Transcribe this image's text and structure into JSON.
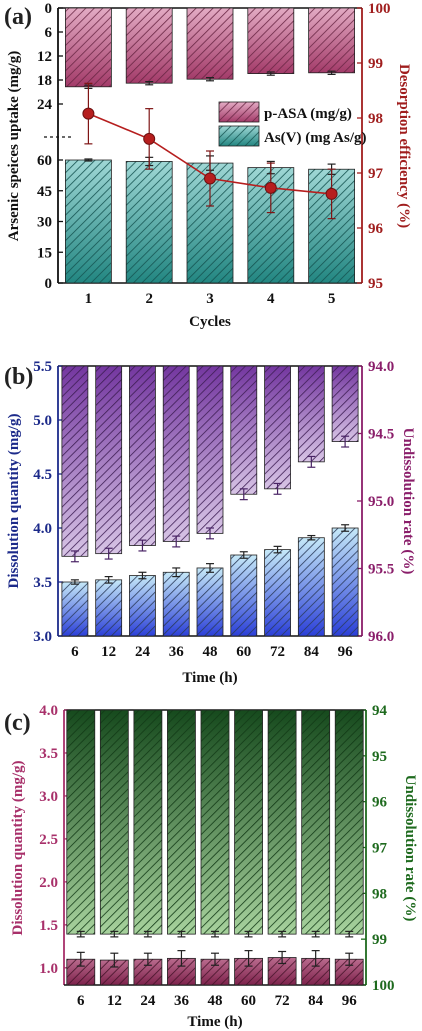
{
  "chart_data": [
    {
      "panel": "(a)",
      "type": "bar",
      "xlabel": "Cycles",
      "ylabel": "Arsenic speices uptake (mg/g)",
      "y2label": "Desorption efficiency (%)",
      "categories": [
        "1",
        "2",
        "3",
        "4",
        "5"
      ],
      "upper_axis": {
        "ticks": [
          "0",
          "6",
          "12",
          "18",
          "24"
        ],
        "range": [
          0,
          24
        ],
        "direction": "down"
      },
      "lower_axis": {
        "ticks": [
          "0",
          "15",
          "30",
          "45",
          "60"
        ],
        "range": [
          0,
          60
        ]
      },
      "y2_axis": {
        "ticks": [
          "95",
          "96",
          "97",
          "98",
          "99",
          "100"
        ],
        "range": [
          95,
          100
        ]
      },
      "series": [
        {
          "name": "p-ASA (mg/g)",
          "axis": "upper",
          "values": [
            19.7,
            18.8,
            17.8,
            16.4,
            16.2
          ],
          "errors": [
            0.4,
            0.4,
            0.4,
            0.4,
            0.4
          ],
          "color": "#c0457c"
        },
        {
          "name": "As(V) (mg As/g)",
          "axis": "lower",
          "values": [
            60.0,
            59.3,
            58.5,
            56.3,
            55.5
          ],
          "errors": [
            0.5,
            2.0,
            3.5,
            3.0,
            2.5
          ],
          "color": "#2aa7a1"
        },
        {
          "name": "Desorption efficiency",
          "axis": "right",
          "type": "line",
          "values": [
            98.08,
            97.62,
            96.9,
            96.73,
            96.62
          ],
          "errors": [
            0.55,
            0.55,
            0.5,
            0.45,
            0.45
          ],
          "color": "#b61e1e"
        }
      ],
      "legend": "center-right",
      "colors": {
        "axis_right": "#a01e1e",
        "panel_label": "#222222"
      }
    },
    {
      "panel": "(b)",
      "type": "bar",
      "xlabel": "Time (h)",
      "ylabel": "Dissolution quantity (mg/g)",
      "y2label": "Undissolution rate (%)",
      "categories": [
        "6",
        "12",
        "24",
        "36",
        "48",
        "60",
        "72",
        "84",
        "96"
      ],
      "y_axis": {
        "ticks": [
          "3.0",
          "3.5",
          "4.0",
          "4.5",
          "5.0",
          "5.5"
        ],
        "range": [
          3.0,
          5.5
        ]
      },
      "y2_axis": {
        "ticks": [
          "94.0",
          "94.5",
          "95.0",
          "95.5",
          "96.0"
        ],
        "range": [
          94.0,
          96.0
        ],
        "direction": "down"
      },
      "series": [
        {
          "name": "Dissolution quantity",
          "axis": "left",
          "values": [
            3.5,
            3.52,
            3.56,
            3.59,
            3.63,
            3.75,
            3.8,
            3.91,
            4.0
          ],
          "errors": [
            0.02,
            0.03,
            0.03,
            0.04,
            0.04,
            0.03,
            0.03,
            0.02,
            0.03
          ],
          "color": "#2b3fd8"
        },
        {
          "name": "Undissolution rate",
          "axis": "right",
          "values": [
            95.41,
            95.39,
            95.33,
            95.3,
            95.24,
            94.95,
            94.91,
            94.71,
            94.56
          ],
          "errors": [
            0.04,
            0.04,
            0.04,
            0.04,
            0.04,
            0.04,
            0.04,
            0.04,
            0.04
          ],
          "color": "#7a3aa8"
        }
      ],
      "colors": {
        "axis_left": "#1c2a8a",
        "axis_right": "#8a1e6a"
      }
    },
    {
      "panel": "(c)",
      "type": "bar",
      "xlabel": "Time (h)",
      "ylabel": "Dissolution quantity (mg/g)",
      "y2label": "Undissolution rate (%)",
      "categories": [
        "6",
        "12",
        "24",
        "36",
        "48",
        "60",
        "72",
        "84",
        "96"
      ],
      "y_axis": {
        "ticks": [
          "1.0",
          "1.5",
          "2.0",
          "2.5",
          "3.0",
          "3.5",
          "4.0"
        ],
        "range": [
          0.8,
          4.0
        ]
      },
      "y2_axis": {
        "ticks": [
          "94",
          "95",
          "96",
          "97",
          "98",
          "99",
          "100"
        ],
        "range": [
          94,
          100
        ],
        "direction": "down"
      },
      "series": [
        {
          "name": "Dissolution quantity",
          "axis": "left",
          "values": [
            1.1,
            1.09,
            1.1,
            1.11,
            1.1,
            1.11,
            1.12,
            1.11,
            1.1
          ],
          "errors": [
            0.08,
            0.08,
            0.07,
            0.09,
            0.07,
            0.09,
            0.07,
            0.09,
            0.07
          ],
          "color": "#9c2b5e"
        },
        {
          "name": "Undissolution rate",
          "axis": "right",
          "values": [
            98.89,
            98.89,
            98.89,
            98.89,
            98.89,
            98.89,
            98.89,
            98.89,
            98.89
          ],
          "errors": [
            0.06,
            0.06,
            0.06,
            0.06,
            0.06,
            0.06,
            0.06,
            0.06,
            0.06
          ],
          "color": "#5fae4c"
        }
      ],
      "colors": {
        "axis_left": "#a8306a",
        "axis_right": "#1e6a1e"
      }
    }
  ]
}
